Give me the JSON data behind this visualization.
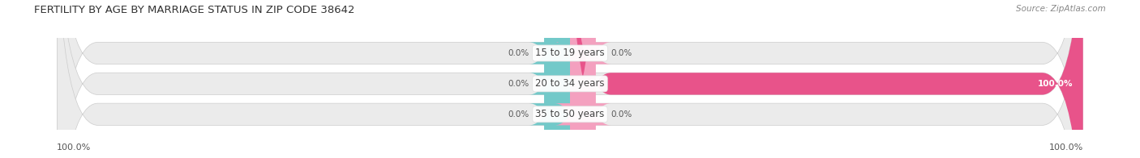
{
  "title": "FERTILITY BY AGE BY MARRIAGE STATUS IN ZIP CODE 38642",
  "source": "Source: ZipAtlas.com",
  "categories": [
    "15 to 19 years",
    "20 to 34 years",
    "35 to 50 years"
  ],
  "married_values": [
    0.0,
    0.0,
    0.0
  ],
  "unmarried_values": [
    0.0,
    100.0,
    0.0
  ],
  "married_color": "#72c9c9",
  "unmarried_color_light": "#f4a0bf",
  "unmarried_color_full": "#e8538a",
  "bar_bg_color": "#ebebeb",
  "bar_bg_edge": "#d8d8d8",
  "title_fontsize": 9.5,
  "source_fontsize": 7.5,
  "label_fontsize": 7.5,
  "category_fontsize": 8.5,
  "legend_fontsize": 8.5,
  "axis_label_fontsize": 8,
  "bottom_left_label": "100.0%",
  "bottom_right_label": "100.0%"
}
